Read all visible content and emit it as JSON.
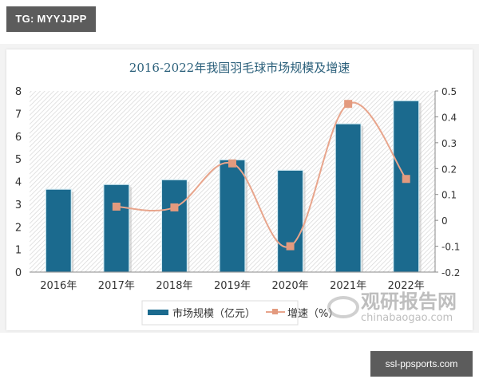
{
  "watermarks": {
    "top_tag": "TG: MYYJJPP",
    "bottom_tag": "ssl-ppsports.com",
    "logo_cn": "观研报告网",
    "logo_en": "chinabaogao.com"
  },
  "colors": {
    "bar": "#1b6a8e",
    "line": "#e8a58c",
    "marker": "#e39a7e",
    "title": "#2a5f7a"
  },
  "chart_data": {
    "type": "bar+line",
    "title": "2016-2022年我国羽毛球市场规模及增速",
    "categories": [
      "2016年",
      "2017年",
      "2018年",
      "2019年",
      "2020年",
      "2021年",
      "2022年"
    ],
    "series": [
      {
        "name": "市场规模（亿元）",
        "type": "bar",
        "axis": "left",
        "values": [
          3.66,
          3.87,
          4.08,
          4.96,
          4.5,
          6.55,
          7.57
        ]
      },
      {
        "name": "增速（%）",
        "type": "line",
        "axis": "right",
        "smooth": true,
        "values": [
          null,
          0.053,
          0.05,
          0.22,
          -0.1,
          0.45,
          0.16
        ]
      }
    ],
    "left_axis": {
      "ylim": [
        0,
        8
      ],
      "ticks": [
        "0",
        "1",
        "2",
        "3",
        "4",
        "5",
        "6",
        "7",
        "8"
      ]
    },
    "right_axis": {
      "ylim": [
        -0.2,
        0.5
      ],
      "ticks": [
        "-0.2",
        "-0.1",
        "0",
        "0.1",
        "0.2",
        "0.3",
        "0.4",
        "0.5"
      ]
    },
    "xlabel": "",
    "ylabel": "",
    "legend": {
      "position": "bottom",
      "entries": [
        "市场规模（亿元）",
        "增速（%）"
      ]
    },
    "grid": false,
    "background": "diagonal-hatch"
  }
}
